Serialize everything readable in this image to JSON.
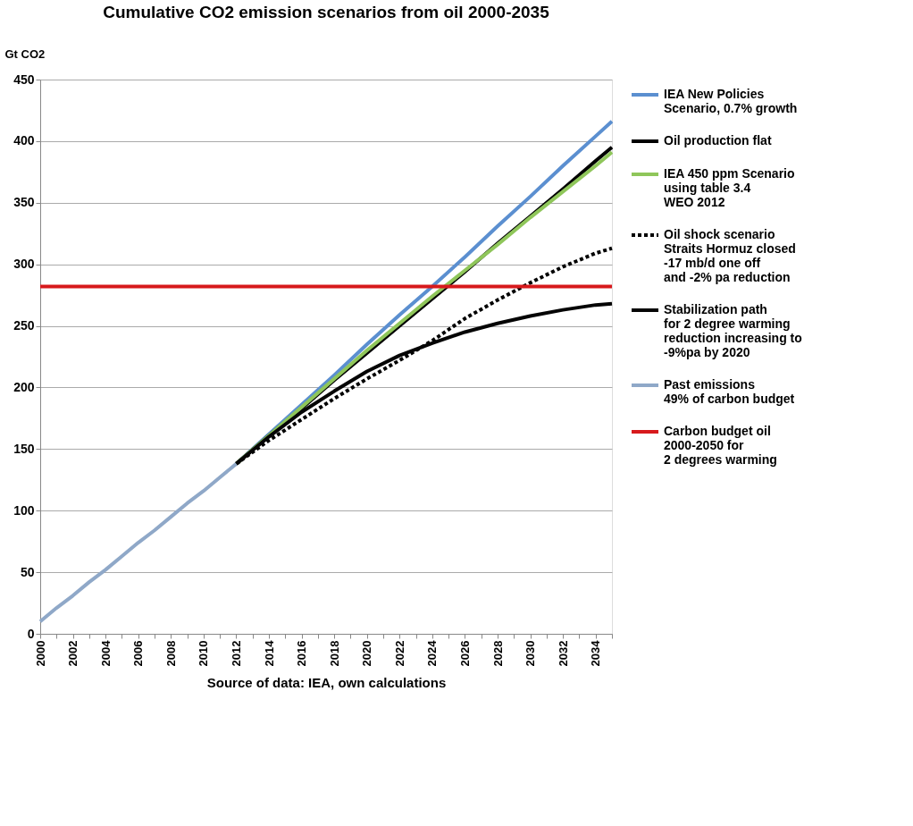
{
  "chart_data": {
    "type": "line",
    "title": "Cumulative CO2 emission scenarios from oil 2000-2035",
    "ylabel": "Gt CO2",
    "xlabel": "Source of data: IEA, own calculations",
    "xlim": [
      2000,
      2035
    ],
    "xticks": [
      2000,
      {
        "value": 2001,
        "label": null
      },
      2002,
      {
        "value": 2003,
        "label": null
      },
      2004,
      {
        "value": 2005,
        "label": null
      },
      2006,
      {
        "value": 2007,
        "label": null
      },
      2008,
      {
        "value": 2009,
        "label": null
      },
      2010,
      {
        "value": 2011,
        "label": null
      },
      2012,
      {
        "value": 2013,
        "label": null
      },
      2014,
      {
        "value": 2015,
        "label": null
      },
      2016,
      {
        "value": 2017,
        "label": null
      },
      2018,
      {
        "value": 2019,
        "label": null
      },
      2020,
      {
        "value": 2021,
        "label": null
      },
      2022,
      {
        "value": 2023,
        "label": null
      },
      2024,
      {
        "value": 2025,
        "label": null
      },
      2026,
      {
        "value": 2027,
        "label": null
      },
      2028,
      {
        "value": 2029,
        "label": null
      },
      2030,
      {
        "value": 2031,
        "label": null
      },
      2032,
      {
        "value": 2033,
        "label": null
      },
      2034,
      {
        "value": 2035,
        "label": null
      }
    ],
    "ylim": [
      0,
      450
    ],
    "yticks": [
      0,
      50,
      100,
      150,
      200,
      250,
      300,
      350,
      400,
      450
    ],
    "grid": "y",
    "legend": "right",
    "line_style": "solid",
    "series": [
      {
        "name": "IEA New Policies\nScenario, 0.7% growth",
        "color": "#5b8fd0",
        "x": [
          2012,
          2014,
          2016,
          2018,
          2020,
          2022,
          2024,
          2026,
          2028,
          2030,
          2032,
          2034,
          2035
        ],
        "values": [
          138,
          162,
          186,
          210,
          235,
          259,
          282,
          306,
          331,
          355,
          380,
          404,
          416
        ]
      },
      {
        "name": "Oil production flat",
        "color": "#000000",
        "x": [
          2012,
          2014,
          2016,
          2018,
          2020,
          2022,
          2024,
          2026,
          2028,
          2030,
          2032,
          2034,
          2035
        ],
        "values": [
          138,
          161,
          183,
          206,
          228,
          250,
          272,
          294,
          317,
          339,
          361,
          384,
          395
        ]
      },
      {
        "name": "IEA 450 ppm Scenario\nusing table 3.4\nWEO 2012",
        "color": "#8fc65a",
        "x": [
          2012,
          2014,
          2016,
          2018,
          2020,
          2022,
          2024,
          2026,
          2028,
          2030,
          2032,
          2034,
          2035
        ],
        "values": [
          138,
          161,
          184,
          207,
          230,
          252,
          274,
          295,
          316,
          338,
          359,
          380,
          391
        ]
      },
      {
        "name": "Oil shock scenario\nStraits Hormuz closed\n-17 mb/d  one off\nand -2% pa reduction",
        "color": "#000000",
        "line_style": "dashed",
        "x": [
          2012,
          2014,
          2016,
          2018,
          2020,
          2022,
          2024,
          2026,
          2028,
          2030,
          2032,
          2034,
          2035
        ],
        "values": [
          138,
          157,
          174,
          191,
          207,
          222,
          238,
          256,
          271,
          285,
          298,
          309,
          313
        ]
      },
      {
        "name": "Stabilization path\nfor 2 degree warming\nreduction increasing to\n-9%pa by 2020",
        "color": "#050505",
        "x": [
          2012,
          2014,
          2016,
          2018,
          2020,
          2022,
          2024,
          2026,
          2028,
          2030,
          2032,
          2034,
          2035
        ],
        "values": [
          138,
          160,
          180,
          197,
          213,
          226,
          236,
          245,
          252,
          258,
          263,
          267,
          268
        ]
      },
      {
        "name": "Past emissions\n49% of carbon budget",
        "color": "#8fa8c8",
        "x": [
          2000,
          2001,
          2002,
          2003,
          2004,
          2005,
          2006,
          2007,
          2008,
          2009,
          2010,
          2011,
          2012
        ],
        "values": [
          10,
          21,
          31,
          42,
          52,
          63,
          74,
          84,
          95,
          106,
          116,
          127,
          138
        ]
      }
    ],
    "ref_lines": [
      {
        "axis": "y",
        "value": 282,
        "label": "Carbon budget oil\n2000-2050 for\n2 degrees warming",
        "color": "#d7191c",
        "line_style": "solid"
      }
    ]
  }
}
